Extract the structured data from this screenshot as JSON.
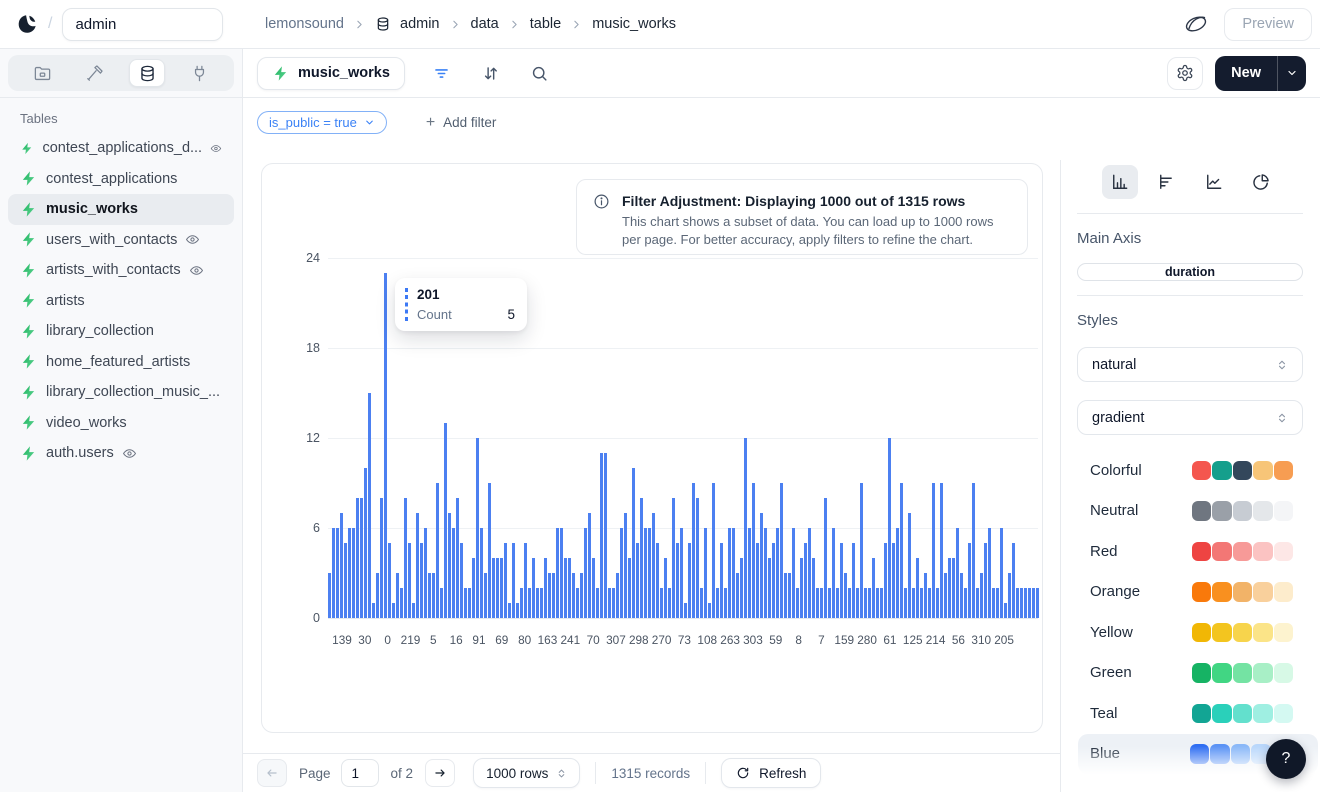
{
  "header": {
    "workspace": "admin",
    "slash": "/",
    "breadcrumb": [
      {
        "label": "lemonsound",
        "muted": true,
        "icon": false
      },
      {
        "label": "admin",
        "muted": false,
        "icon": true
      },
      {
        "label": "data",
        "muted": false,
        "icon": false
      },
      {
        "label": "table",
        "muted": false,
        "icon": false
      },
      {
        "label": "music_works",
        "muted": false,
        "icon": false
      }
    ],
    "preview_label": "Preview"
  },
  "sidebar": {
    "tables_label": "Tables",
    "items": [
      {
        "label": "contest_applications_d...",
        "eye": true,
        "selected": false
      },
      {
        "label": "contest_applications",
        "eye": false,
        "selected": false
      },
      {
        "label": "music_works",
        "eye": false,
        "selected": true
      },
      {
        "label": "users_with_contacts",
        "eye": true,
        "selected": false
      },
      {
        "label": "artists_with_contacts",
        "eye": true,
        "selected": false
      },
      {
        "label": "artists",
        "eye": false,
        "selected": false
      },
      {
        "label": "library_collection",
        "eye": false,
        "selected": false
      },
      {
        "label": "home_featured_artists",
        "eye": false,
        "selected": false
      },
      {
        "label": "library_collection_music_...",
        "eye": false,
        "selected": false
      },
      {
        "label": "video_works",
        "eye": false,
        "selected": false
      },
      {
        "label": "auth.users",
        "eye": true,
        "selected": false
      }
    ]
  },
  "toolbar": {
    "table_label": "music_works",
    "new_label": "New"
  },
  "filters": {
    "chip_label": "is_public = true",
    "add_label": "Add filter",
    "plus": "+"
  },
  "banner": {
    "title": "Filter Adjustment: Displaying 1000 out of 1315 rows",
    "body": "This chart shows a subset of data. You can load up to 1000 rows per page. For better accuracy, apply filters to refine the chart."
  },
  "tooltip": {
    "title": "201",
    "key": "Count",
    "value": "5"
  },
  "chart_data": {
    "type": "bar",
    "title": "",
    "xlabel": "duration",
    "ylabel": "Count",
    "ylim": [
      0,
      24
    ],
    "yticks": [
      0,
      6,
      12,
      18,
      24
    ],
    "bar_color": "#4c80f1",
    "x_tick_labels": [
      "139",
      "30",
      "0",
      "219",
      "5",
      "16",
      "91",
      "69",
      "80",
      "163",
      "241",
      "70",
      "307",
      "298",
      "270",
      "73",
      "108",
      "263",
      "303",
      "59",
      "8",
      "7",
      "159",
      "280",
      "61",
      "125",
      "214",
      "56",
      "310",
      "205"
    ],
    "values": [
      3,
      6,
      6,
      7,
      5,
      6,
      6,
      8,
      8,
      10,
      15,
      1,
      3,
      8,
      23,
      5,
      1,
      3,
      2,
      8,
      5,
      1,
      7,
      5,
      6,
      3,
      3,
      9,
      2,
      13,
      7,
      6,
      8,
      5,
      2,
      2,
      4,
      12,
      6,
      3,
      9,
      4,
      4,
      4,
      5,
      1,
      5,
      1,
      2,
      5,
      2,
      4,
      2,
      2,
      4,
      3,
      3,
      6,
      6,
      4,
      4,
      3,
      2,
      3,
      6,
      7,
      4,
      2,
      11,
      11,
      2,
      2,
      3,
      6,
      7,
      4,
      10,
      5,
      8,
      6,
      6,
      7,
      5,
      2,
      4,
      2,
      8,
      5,
      6,
      1,
      5,
      9,
      8,
      2,
      6,
      1,
      9,
      2,
      5,
      2,
      6,
      6,
      3,
      4,
      12,
      6,
      9,
      5,
      7,
      6,
      4,
      5,
      6,
      9,
      3,
      3,
      6,
      2,
      4,
      5,
      6,
      4,
      2,
      2,
      8,
      2,
      6,
      2,
      5,
      3,
      2,
      5,
      2,
      9,
      2,
      2,
      4,
      2,
      2,
      5,
      12,
      5,
      6,
      9,
      2,
      7,
      2,
      4,
      2,
      3,
      2,
      9,
      2,
      9,
      3,
      4,
      4,
      6,
      3,
      2,
      5,
      9,
      2,
      3,
      5,
      6,
      2,
      2,
      6,
      1,
      3,
      5,
      2,
      2,
      2,
      2,
      2,
      2
    ]
  },
  "panel": {
    "main_axis_label": "Main Axis",
    "main_axis_value": "duration",
    "styles_label": "Styles",
    "style_select_1": "natural",
    "style_select_2": "gradient",
    "palettes": [
      {
        "name": "Colorful",
        "selected": false,
        "colors": [
          "#f4564e",
          "#159f8c",
          "#33475b",
          "#f7c578",
          "#f79d52"
        ]
      },
      {
        "name": "Neutral",
        "selected": false,
        "colors": [
          "#6f7680",
          "#9aa0a8",
          "#c7ccd3",
          "#e4e7ea",
          "#f4f5f7"
        ]
      },
      {
        "name": "Red",
        "selected": false,
        "colors": [
          "#ee4442",
          "#f37775",
          "#f79a98",
          "#fbc3c2",
          "#fde7e6"
        ]
      },
      {
        "name": "Orange",
        "selected": false,
        "colors": [
          "#f9790b",
          "#f9901f",
          "#f2b368",
          "#f9d09c",
          "#fdeccc"
        ]
      },
      {
        "name": "Yellow",
        "selected": false,
        "colors": [
          "#f1b705",
          "#f3c51f",
          "#f7d44c",
          "#fbe488",
          "#fdf3cf"
        ]
      },
      {
        "name": "Green",
        "selected": false,
        "colors": [
          "#16b364",
          "#41d683",
          "#74e3a3",
          "#a8efc6",
          "#d7f9e6"
        ]
      },
      {
        "name": "Teal",
        "selected": false,
        "colors": [
          "#12a594",
          "#2ad0ba",
          "#63e0cd",
          "#9fefe2",
          "#d4f9f2"
        ]
      },
      {
        "name": "Blue",
        "selected": true,
        "colors": [
          "#2f6ef2",
          "#5b93f5",
          "#8ab8f8",
          "#b9d7fb",
          "#e2eefd"
        ]
      }
    ]
  },
  "pagination": {
    "page_label": "Page",
    "page_value": "1",
    "of_label": "of 2",
    "rows_label": "1000 rows",
    "records_label": "1315 records",
    "refresh_label": "Refresh"
  },
  "help_label": "?"
}
